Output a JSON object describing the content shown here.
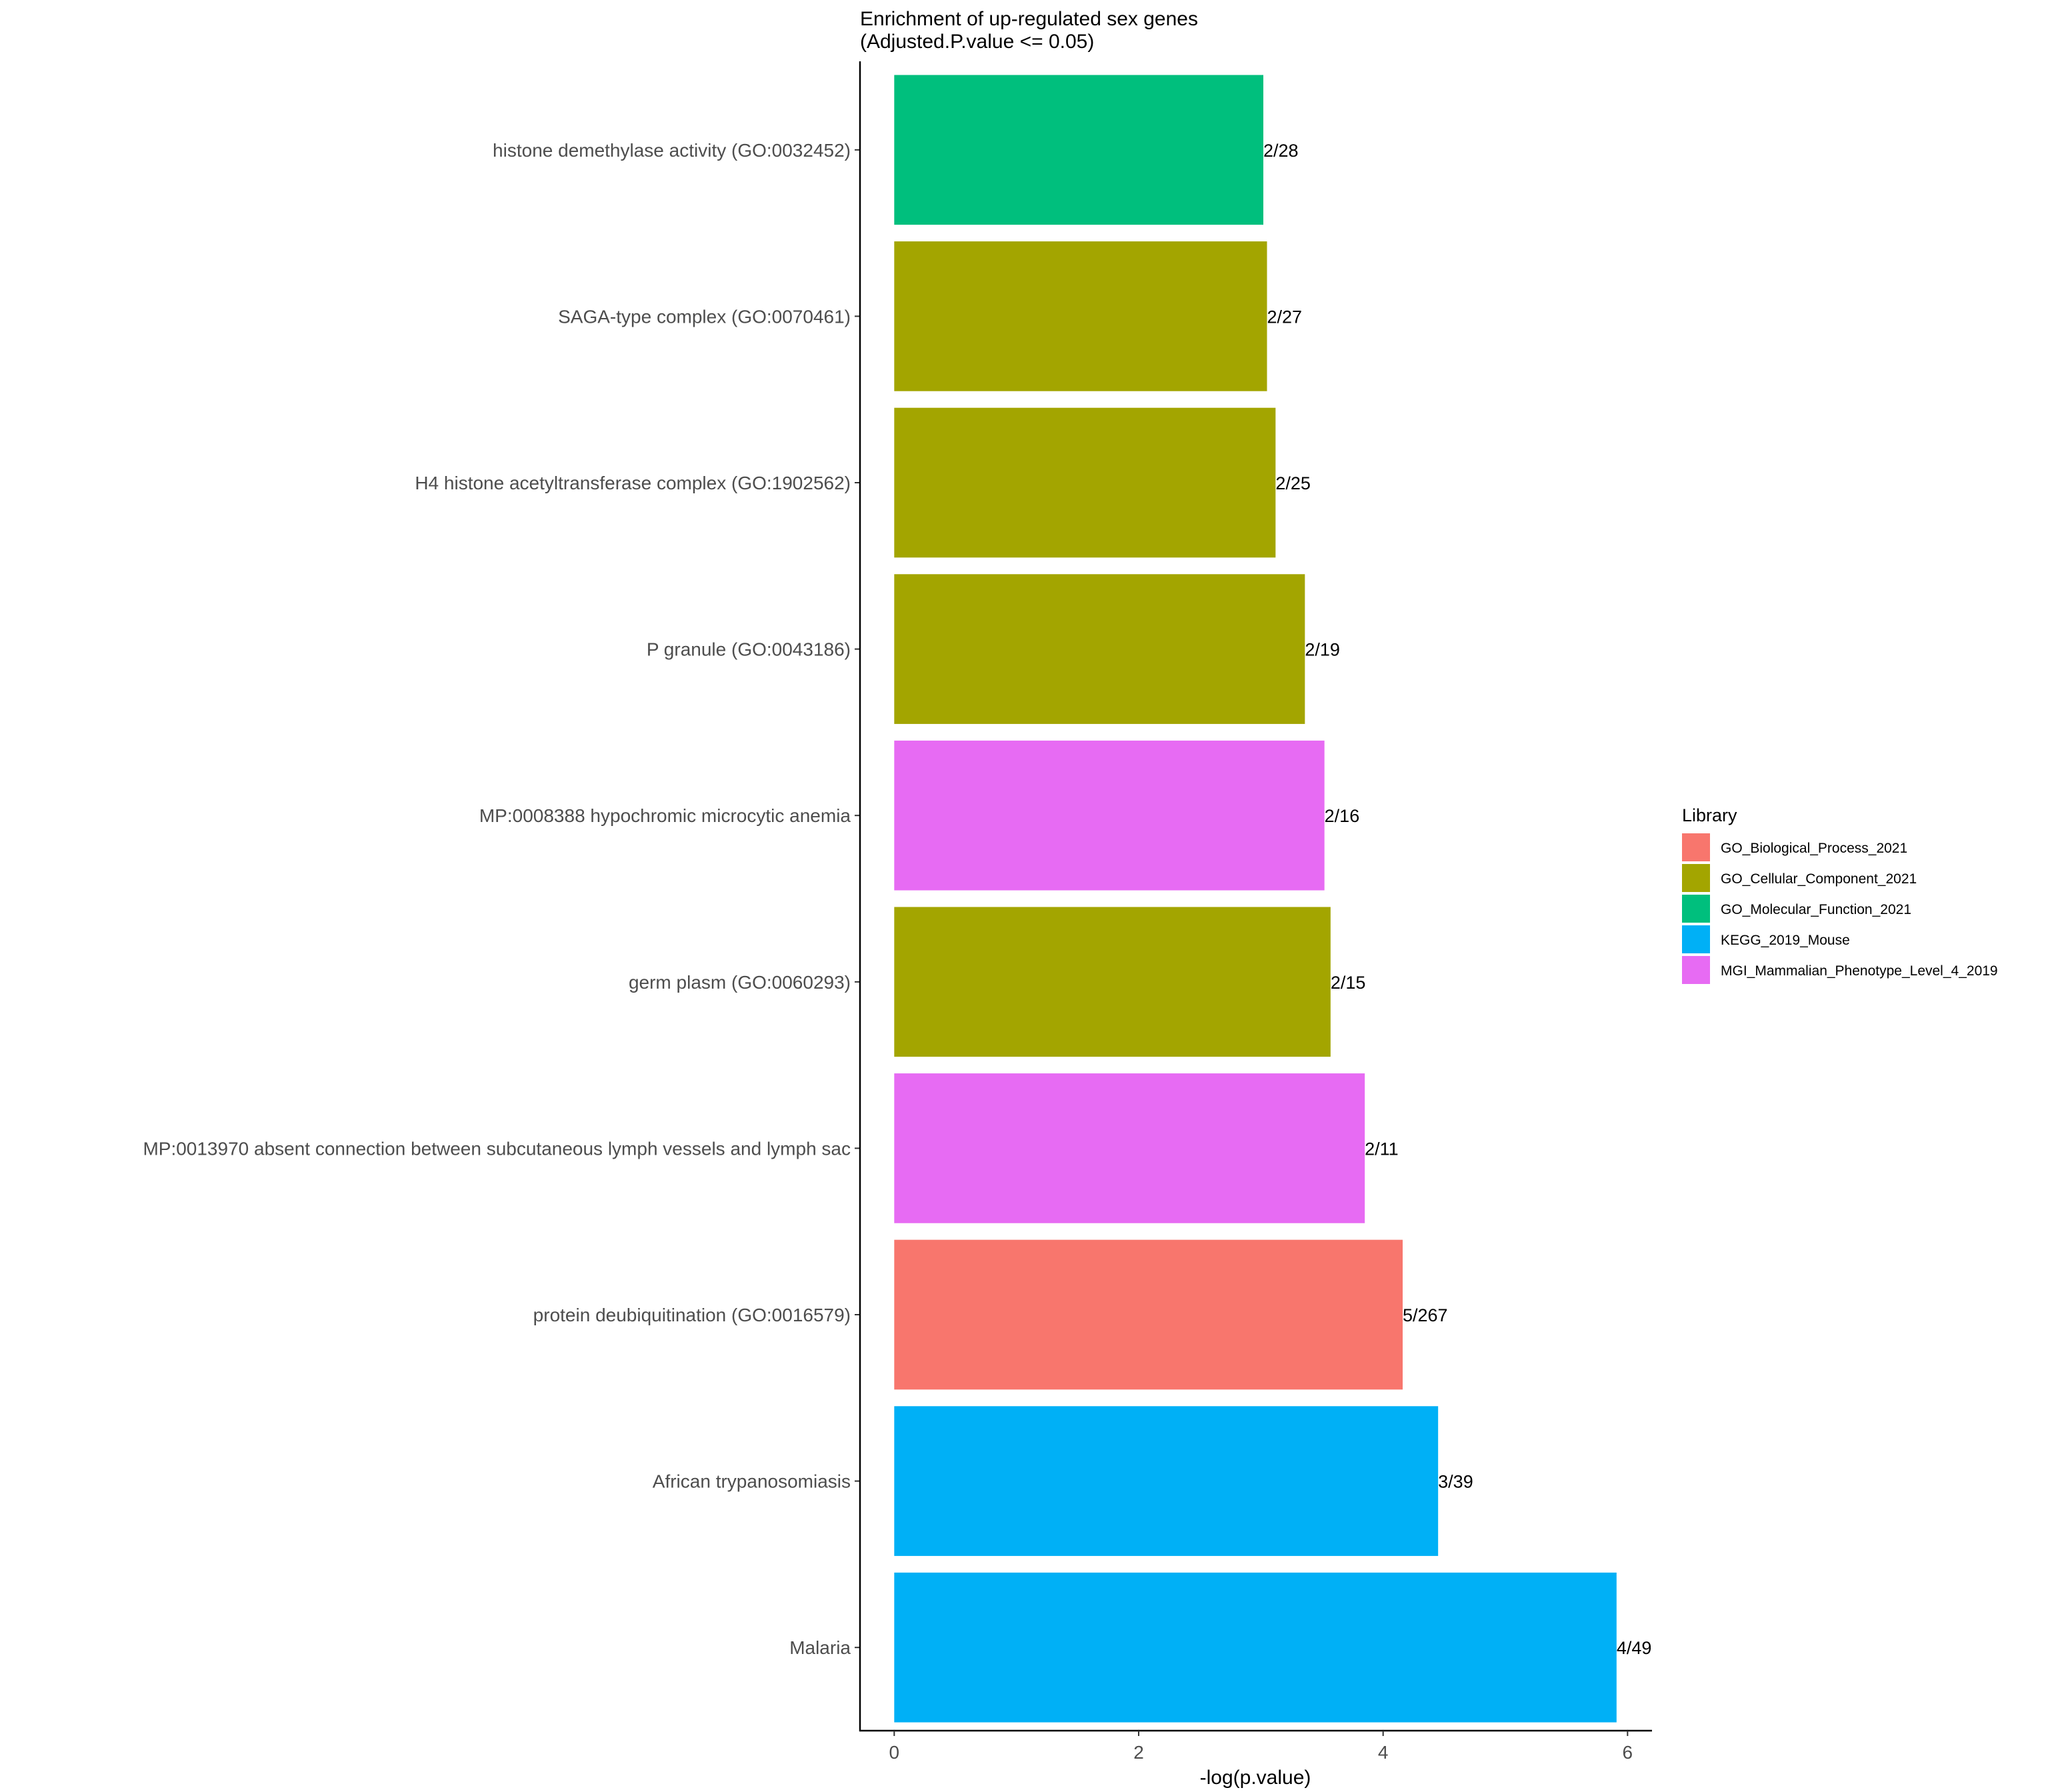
{
  "chart_data": {
    "type": "bar",
    "orientation": "horizontal",
    "title": "Enrichment of up-regulated sex genes",
    "subtitle": "(Adjusted.P.value <= 0.05)",
    "xlabel": "-log(p.value)",
    "ylabel": "",
    "xlim": [
      -0.28,
      6.2
    ],
    "x_ticks": [
      0,
      2,
      4,
      6
    ],
    "x_tick_labels": [
      "0",
      "2",
      "4",
      "6"
    ],
    "grid": false,
    "legend": {
      "title": "Library",
      "position": "right",
      "entries": [
        {
          "name": "GO_Biological_Process_2021",
          "color": "#F8766D"
        },
        {
          "name": "GO_Cellular_Component_2021",
          "color": "#A3A500"
        },
        {
          "name": "GO_Molecular_Function_2021",
          "color": "#00BF7D"
        },
        {
          "name": "KEGG_2019_Mouse",
          "color": "#00B0F6"
        },
        {
          "name": "MGI_Mammalian_Phenotype_Level_4_2019",
          "color": "#E76BF3"
        }
      ]
    },
    "categories": [
      "histone demethylase activity (GO:0032452)",
      "SAGA-type complex (GO:0070461)",
      "H4 histone acetyltransferase complex (GO:1902562)",
      "P granule (GO:0043186)",
      "MP:0008388 hypochromic microcytic anemia",
      "germ plasm (GO:0060293)",
      "MP:0013970 absent connection between subcutaneous lymph vessels and lymph sac",
      "protein deubiquitination (GO:0016579)",
      "African trypanosomiasis",
      "Malaria"
    ],
    "values": [
      3.02,
      3.05,
      3.12,
      3.36,
      3.52,
      3.57,
      3.85,
      4.16,
      4.45,
      5.91
    ],
    "data_labels": [
      "2/28",
      "2/27",
      "2/25",
      "2/19",
      "2/16",
      "2/15",
      "2/11",
      "5/267",
      "3/39",
      "4/49"
    ],
    "library": [
      "GO_Molecular_Function_2021",
      "GO_Cellular_Component_2021",
      "GO_Cellular_Component_2021",
      "GO_Cellular_Component_2021",
      "MGI_Mammalian_Phenotype_Level_4_2019",
      "GO_Cellular_Component_2021",
      "MGI_Mammalian_Phenotype_Level_4_2019",
      "GO_Biological_Process_2021",
      "KEGG_2019_Mouse",
      "KEGG_2019_Mouse"
    ]
  }
}
